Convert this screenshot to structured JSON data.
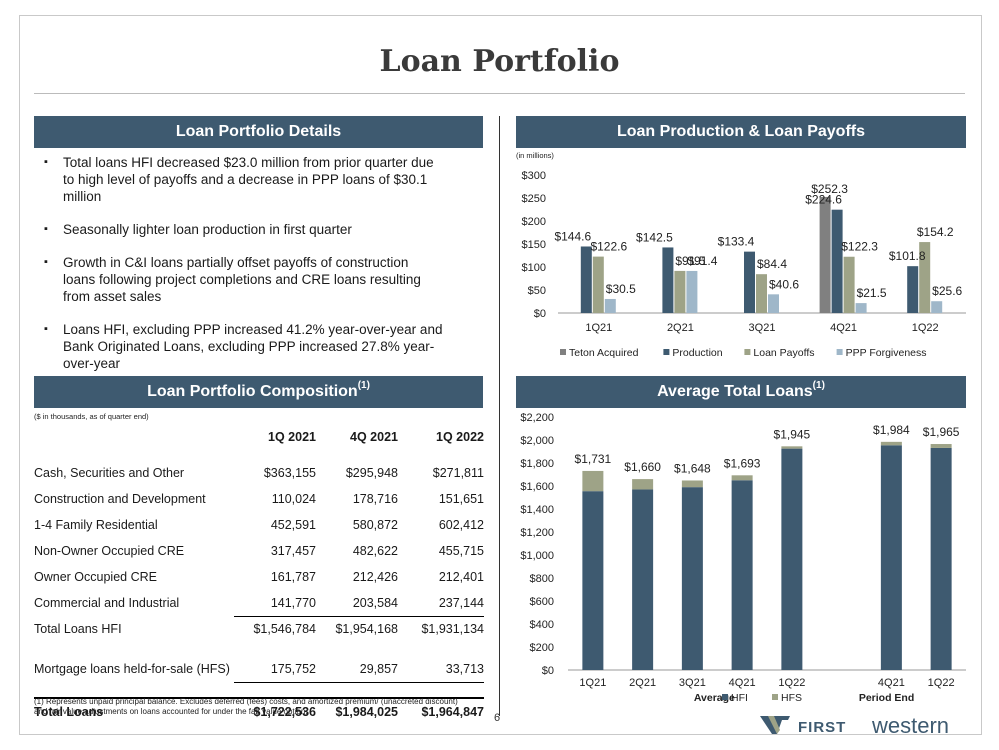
{
  "title": "Loan Portfolio",
  "details": {
    "header": "Loan Portfolio Details",
    "bullets": [
      "Total loans HFI decreased $23.0 million from prior quarter due to high level of payoffs and a decrease in PPP loans of $30.1 million",
      "Seasonally lighter loan production in first quarter",
      "Growth in C&I loans partially offset payoffs of construction loans following project completions and CRE loans resulting from asset sales",
      "Loans HFI, excluding PPP increased 41.2% year-over-year and Bank Originated Loans, excluding PPP increased 27.8% year-over-year"
    ]
  },
  "composition": {
    "header": "Loan Portfolio Composition",
    "header_sup": "(1)",
    "note": "($ in thousands, as of quarter end)",
    "columns": [
      "1Q 2021",
      "4Q 2021",
      "1Q 2022"
    ],
    "rows": [
      {
        "label": "Cash, Securities and Other",
        "values": [
          "$363,155",
          "$295,948",
          "$271,811"
        ]
      },
      {
        "label": "Construction and Development",
        "values": [
          "110,024",
          "178,716",
          "151,651"
        ]
      },
      {
        "label": "1-4 Family Residential",
        "values": [
          "452,591",
          "580,872",
          "602,412"
        ]
      },
      {
        "label": "Non-Owner Occupied CRE",
        "values": [
          "317,457",
          "482,622",
          "455,715"
        ]
      },
      {
        "label": "Owner Occupied CRE",
        "values": [
          "161,787",
          "212,426",
          "212,401"
        ]
      },
      {
        "label": "Commercial and Industrial",
        "values": [
          "141,770",
          "203,584",
          "237,144"
        ]
      },
      {
        "label": "Total Loans HFI",
        "values": [
          "$1,546,784",
          "$1,954,168",
          "$1,931,134"
        ]
      },
      {
        "label": "Mortgage loans held-for-sale (HFS)",
        "values": [
          "175,752",
          "29,857",
          "33,713"
        ]
      },
      {
        "label": "Total Loans",
        "values": [
          "$1,722,536",
          "$1,984,025",
          "$1,964,847"
        ]
      }
    ],
    "footnote": "(1)  Represents unpaid principal balance. Excludes deferred (fees) costs, and amortized premium/ (unaccreted discount) and fair value adjustments on loans accounted for under the fair value option."
  },
  "page_number": "6",
  "logo": {
    "first": "FIRST",
    "second": "western"
  },
  "colors": {
    "navy": "#3e5a70",
    "teton": "#808080",
    "production": "#3e5a70",
    "payoffs": "#9ea387",
    "ppp": "#9fb7c9",
    "hfi": "#3e5a70",
    "hfs": "#9ea387"
  },
  "chart_data": [
    {
      "type": "bar",
      "header": "Loan Production & Loan Payoffs",
      "unit_note": "(in millions)",
      "categories": [
        "1Q21",
        "2Q21",
        "3Q21",
        "4Q21",
        "1Q22"
      ],
      "series": [
        {
          "name": "Teton Acquired",
          "values": [
            null,
            null,
            null,
            252.3,
            null
          ],
          "labels": [
            "",
            "",
            "",
            "$252.3",
            ""
          ]
        },
        {
          "name": "Production",
          "values": [
            144.6,
            142.5,
            133.4,
            224.6,
            101.8
          ],
          "labels": [
            "$144.6",
            "$142.5",
            "$133.4",
            "$224.6",
            "$101.8"
          ]
        },
        {
          "name": "Loan Payoffs",
          "values": [
            122.6,
            91.5,
            84.4,
            122.3,
            154.2
          ],
          "labels": [
            "$122.6",
            "$91.5",
            "$84.4",
            "$122.3",
            "$154.2"
          ]
        },
        {
          "name": "PPP Forgiveness",
          "values": [
            30.5,
            91.4,
            40.6,
            21.5,
            25.6
          ],
          "labels": [
            "$30.5",
            "$91.4",
            "$40.6",
            "$21.5",
            "$25.6"
          ]
        }
      ],
      "ylim": [
        0,
        300
      ],
      "yticks": [
        "$0",
        "$50",
        "$100",
        "$150",
        "$200",
        "$250",
        "$300"
      ],
      "legend": "bottom"
    },
    {
      "type": "bar",
      "stacked": true,
      "header": "Average Total Loans",
      "header_sup": "(1)",
      "categories": [
        "1Q21",
        "2Q21",
        "3Q21",
        "4Q21",
        "1Q22",
        "4Q21",
        "1Q22"
      ],
      "groups": [
        {
          "label": "Average",
          "count": 5
        },
        {
          "label": "Period End",
          "count": 2
        }
      ],
      "series": [
        {
          "name": "HFI",
          "values": [
            1555,
            1570,
            1590,
            1650,
            1925,
            1954,
            1931
          ]
        },
        {
          "name": "HFS",
          "values": [
            176,
            90,
            58,
            43,
            20,
            30,
            34
          ]
        }
      ],
      "totals": [
        "$1,731",
        "$1,660",
        "$1,648",
        "$1,693",
        "$1,945",
        "$1,984",
        "$1,965"
      ],
      "ylim": [
        0,
        2200
      ],
      "yticks": [
        "$0",
        "$200",
        "$400",
        "$600",
        "$800",
        "$1,000",
        "$1,200",
        "$1,400",
        "$1,600",
        "$1,800",
        "$2,000",
        "$2,200"
      ],
      "legend": "bottom"
    }
  ]
}
